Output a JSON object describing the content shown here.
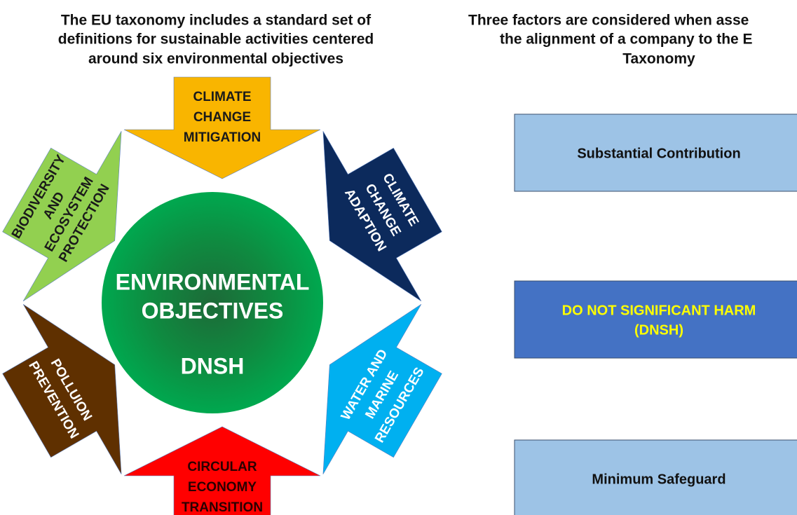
{
  "left_title": [
    "The EU taxonomy includes a standard set of",
    "definitions for sustainable activities centered",
    "around six environmental objectives"
  ],
  "right_title": [
    "Three factors are considered when asse",
    "the alignment of a company to the E",
    "Taxonomy"
  ],
  "center": [
    "ENVIRONMENTAL",
    "OBJECTIVES",
    "DNSH"
  ],
  "objectives": [
    {
      "label": [
        "CLIMATE",
        "CHANGE",
        "MITIGATION"
      ]
    },
    {
      "label": [
        "CLIMATE",
        "CHANGE",
        "ADAPTION"
      ]
    },
    {
      "label": [
        "WATER AND",
        "MARINE",
        "RESOURCES"
      ]
    },
    {
      "label": [
        "CIRCULAR",
        "ECONOMY",
        "TRANSITION"
      ]
    },
    {
      "label": [
        "POLLUION",
        "PREVENTION"
      ]
    },
    {
      "label": [
        "BIODIVERSITY",
        "AND",
        "ECOSYSTEM",
        "PROTECTION"
      ]
    }
  ],
  "factors": [
    {
      "label": [
        "Substantial Contribution"
      ]
    },
    {
      "label": [
        "DO NOT SIGNIFICANT HARM",
        "(DNSH)"
      ]
    },
    {
      "label": [
        "Minimum Safeguard"
      ]
    }
  ]
}
